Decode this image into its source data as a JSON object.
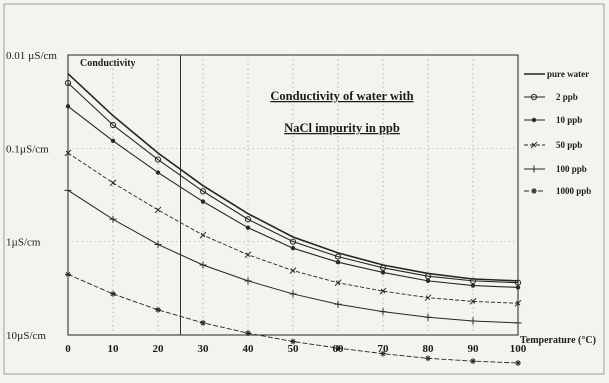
{
  "chart_data": {
    "type": "line",
    "title_lines": [
      "Conductivity of water with",
      "NaCl impurity in ppb"
    ],
    "ylabel": "Conductivity",
    "xlabel": "Temperature (°C)",
    "x": [
      0,
      10,
      20,
      30,
      40,
      50,
      60,
      70,
      80,
      90,
      100
    ],
    "xticks": [
      "0",
      "10",
      "20",
      "30",
      "40",
      "50",
      "60",
      "70",
      "80",
      "90",
      "100"
    ],
    "xlim": [
      0,
      100
    ],
    "yscale": "log-decades",
    "yticks": [
      "0.01 µS/cm",
      "0.1µS/cm",
      "1µS/cm",
      "10µS/cm"
    ],
    "ylim_decades": [
      0,
      3
    ],
    "legend_position": "right",
    "reference_line_x": 25,
    "grid": "dotted vertical",
    "series": [
      {
        "name": "pure water",
        "marker": "none",
        "y": [
          0.2,
          0.65,
          1.05,
          1.4,
          1.7,
          1.95,
          2.12,
          2.25,
          2.34,
          2.4,
          2.42
        ]
      },
      {
        "name": "2 ppb",
        "marker": "circle",
        "y": [
          0.3,
          0.75,
          1.12,
          1.46,
          1.76,
          2.0,
          2.16,
          2.28,
          2.37,
          2.42,
          2.44
        ]
      },
      {
        "name": "10 ppb",
        "marker": "dot",
        "y": [
          0.55,
          0.92,
          1.26,
          1.57,
          1.85,
          2.07,
          2.22,
          2.33,
          2.42,
          2.47,
          2.49
        ]
      },
      {
        "name": "50 ppb",
        "marker": "tick",
        "y": [
          1.05,
          1.37,
          1.66,
          1.93,
          2.14,
          2.31,
          2.44,
          2.53,
          2.6,
          2.64,
          2.66
        ]
      },
      {
        "name": "100 ppb",
        "marker": "plus",
        "y": [
          1.45,
          1.76,
          2.03,
          2.25,
          2.42,
          2.56,
          2.67,
          2.75,
          2.81,
          2.85,
          2.87
        ]
      },
      {
        "name": "1000 ppb",
        "marker": "star",
        "y": [
          2.35,
          2.56,
          2.73,
          2.87,
          2.98,
          3.07,
          3.14,
          3.2,
          3.25,
          3.28,
          3.3
        ]
      }
    ]
  }
}
